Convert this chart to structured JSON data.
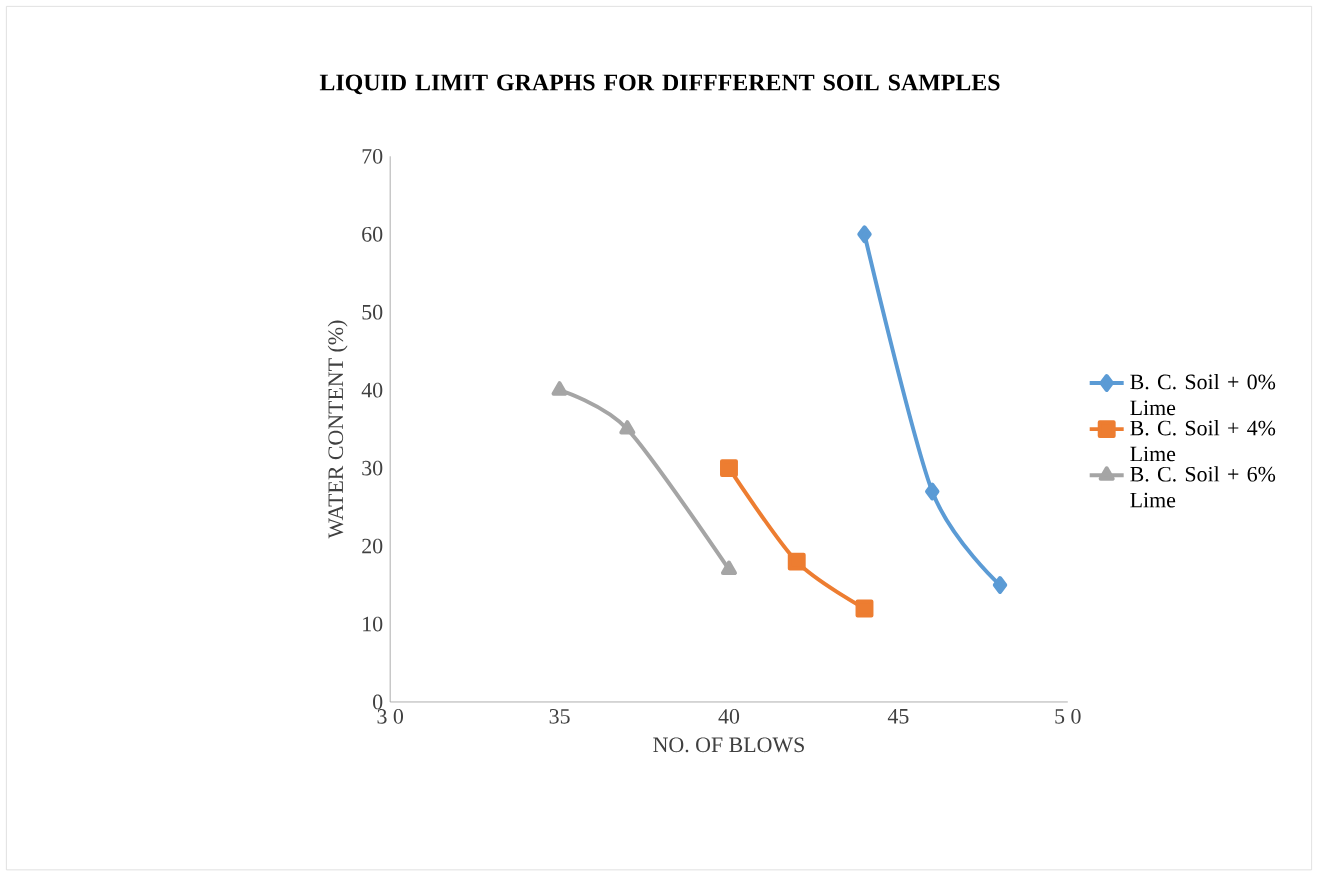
{
  "chart_data": {
    "type": "line",
    "title": "LIQUID LIMIT GRAPHS FOR DIFFFERENT SOIL SAMPLES",
    "xlabel": "NO. OF BLOWS",
    "ylabel": "WATER CONTENT (%)",
    "series": [
      {
        "name": "B. C. Soil + 0% Lime",
        "color": "#5b9bd5",
        "marker": "diamond",
        "x": [
          44,
          46,
          48
        ],
        "values": [
          60,
          27,
          15
        ]
      },
      {
        "name": "B. C. Soil + 4% Lime",
        "color": "#ed7d31",
        "marker": "square",
        "x": [
          40,
          42,
          44
        ],
        "values": [
          30,
          18,
          12
        ]
      },
      {
        "name": "B. C. Soil + 6% Lime",
        "color": "#a5a5a5",
        "marker": "triangle",
        "x": [
          35,
          37,
          40
        ],
        "values": [
          40,
          35,
          17
        ]
      }
    ],
    "xlim": [
      30,
      50
    ],
    "xticks": [
      {
        "value": 30,
        "label": "3 0"
      },
      35,
      40,
      45,
      {
        "value": 50,
        "label": "5 0"
      }
    ],
    "ylim": [
      0,
      70
    ],
    "yticks": [
      0,
      10,
      20,
      30,
      40,
      50,
      60,
      70
    ],
    "grid": false,
    "legend": "right",
    "line_style": "solid"
  }
}
